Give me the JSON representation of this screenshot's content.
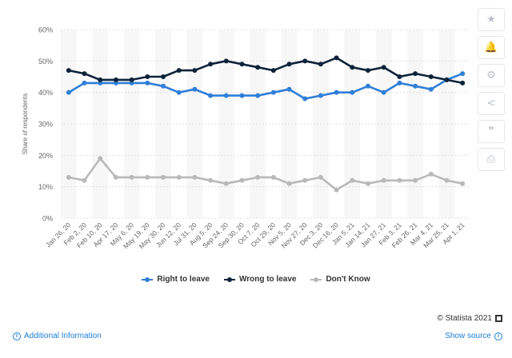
{
  "chart_data": {
    "type": "line",
    "title": "",
    "xlabel": "",
    "ylabel": "Share of respondents",
    "ylim": [
      0,
      60
    ],
    "y_ticks": [
      "0%",
      "10%",
      "20%",
      "30%",
      "40%",
      "50%",
      "60%"
    ],
    "grid": true,
    "legend_position": "bottom",
    "categories": [
      "Jan 26, 20",
      "Feb 2, 20",
      "Feb 10, 20",
      "Apr 17, 20",
      "May 6, 20",
      "May 19, 20",
      "May 30, 20",
      "Jun 12, 20",
      "Jul 31, 20",
      "Aug 5, 20",
      "Sep 24, 20",
      "Sep 30, 20",
      "Oct 7, 20",
      "Oct 29, 20",
      "Nov 5, 20",
      "Nov 27, 20",
      "Dec 3, 20",
      "Dec 16, 20",
      "Jan 5, 21",
      "Jan 14, 21",
      "Jan 27, 21",
      "Feb 3, 21",
      "Feb 26, 21",
      "Mar 4, 21",
      "Mar 25, 21",
      "Apr 1, 21"
    ],
    "series": [
      {
        "name": "Right to leave",
        "color": "#2f7ed8",
        "values": [
          40,
          43,
          43,
          43,
          43,
          43,
          42,
          40,
          41,
          39,
          39,
          39,
          39,
          40,
          41,
          38,
          39,
          40,
          40,
          42,
          40,
          43,
          42,
          41,
          44,
          46
        ]
      },
      {
        "name": "Wrong to leave",
        "color": "#0d233a",
        "values": [
          47,
          46,
          44,
          44,
          44,
          45,
          45,
          47,
          47,
          49,
          50,
          49,
          48,
          47,
          49,
          50,
          49,
          51,
          48,
          47,
          48,
          45,
          46,
          45,
          44,
          43
        ]
      },
      {
        "name": "Don't Know",
        "color": "#b9b9b9",
        "values": [
          13,
          12,
          19,
          13,
          13,
          13,
          13,
          13,
          13,
          12,
          11,
          12,
          13,
          13,
          11,
          12,
          13,
          9,
          12,
          11,
          12,
          12,
          12,
          14,
          12,
          11
        ]
      }
    ]
  },
  "toolbar": {
    "icons": [
      "star-icon",
      "bell-icon",
      "gear-icon",
      "share-icon",
      "quote-icon",
      "print-icon"
    ],
    "glyphs": [
      "★",
      "🔔",
      "⚙",
      "<",
      "❞",
      "⎙"
    ]
  },
  "footer": {
    "credits": "© Statista 2021",
    "additional_info": "Additional Information",
    "show_source": "Show source"
  }
}
